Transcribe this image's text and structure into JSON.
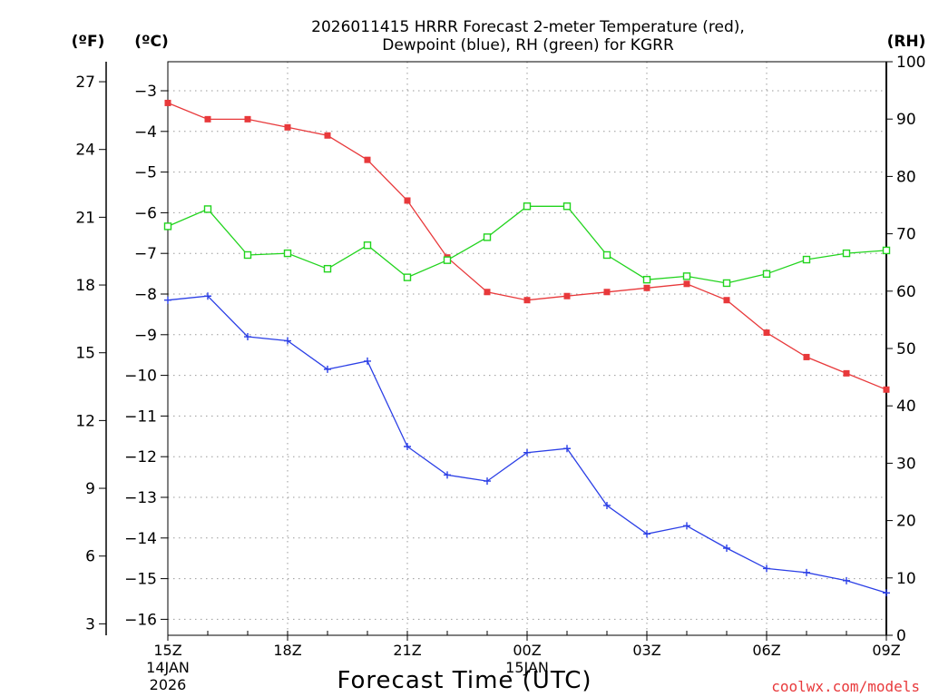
{
  "chart_data": {
    "type": "line",
    "title_lines": [
      "2026011415 HRRR Forecast 2-meter Temperature (red),",
      "Dewpoint (blue), RH (green) for KGRR"
    ],
    "units": {
      "fahrenheit": "(ºF)",
      "celsius": "(ºC)",
      "rh": "(RH)"
    },
    "xlabel": "Forecast Time (UTC)",
    "credit": "coolwx.com/models",
    "x_tick_labels": [
      {
        "hour": 0,
        "label": "15Z",
        "date": "14JAN",
        "year": "2026"
      },
      {
        "hour": 3,
        "label": "18Z"
      },
      {
        "hour": 6,
        "label": "21Z"
      },
      {
        "hour": 9,
        "label": "00Z",
        "date": "15JAN"
      },
      {
        "hour": 12,
        "label": "03Z"
      },
      {
        "hour": 15,
        "label": "06Z"
      },
      {
        "hour": 18,
        "label": "09Z"
      }
    ],
    "xlim": [
      0,
      18
    ],
    "celsius_ticks": [
      -3,
      -4,
      -5,
      -6,
      -7,
      -8,
      -9,
      -10,
      -11,
      -12,
      -13,
      -14,
      -15,
      -16
    ],
    "celsius_lim": [
      -16.3,
      -2.5
    ],
    "fahrenheit_ticks": [
      27,
      24,
      21,
      18,
      15,
      12,
      9,
      6,
      3
    ],
    "rh_ticks": [
      100,
      90,
      80,
      70,
      60,
      50,
      40,
      30,
      20,
      10,
      0
    ],
    "rh_lim": [
      0,
      100
    ],
    "hours": [
      0,
      1,
      2,
      3,
      4,
      5,
      6,
      7,
      8,
      9,
      10,
      11,
      12,
      13,
      14,
      15,
      16,
      17,
      18
    ],
    "series": [
      {
        "name": "2-meter Temperature",
        "axis": "celsius",
        "color": "#e8393b",
        "marker": "filled-square",
        "values": [
          -3.3,
          -3.7,
          -3.7,
          -3.9,
          -4.1,
          -4.7,
          -5.7,
          -7.1,
          -7.95,
          -8.15,
          -8.05,
          -7.95,
          -7.85,
          -7.75,
          -8.15,
          -8.95,
          -9.55,
          -9.95,
          -10.35
        ]
      },
      {
        "name": "Dewpoint",
        "axis": "celsius",
        "color": "#2b3fe6",
        "marker": "plus",
        "values": [
          -8.15,
          -8.05,
          -9.05,
          -9.15,
          -9.85,
          -9.65,
          -11.75,
          -12.45,
          -12.6,
          -11.9,
          -11.8,
          -13.2,
          -13.9,
          -13.7,
          -14.25,
          -14.75,
          -14.85,
          -15.05,
          -15.35
        ]
      },
      {
        "name": "Relative Humidity",
        "axis": "rh",
        "color": "#22d41e",
        "marker": "open-square",
        "values": [
          71.3,
          74.3,
          66.3,
          66.6,
          63.9,
          68.0,
          62.4,
          65.4,
          69.4,
          74.8,
          74.8,
          66.3,
          62.0,
          62.6,
          61.4,
          63.0,
          65.5,
          66.6,
          67.1
        ]
      }
    ]
  }
}
